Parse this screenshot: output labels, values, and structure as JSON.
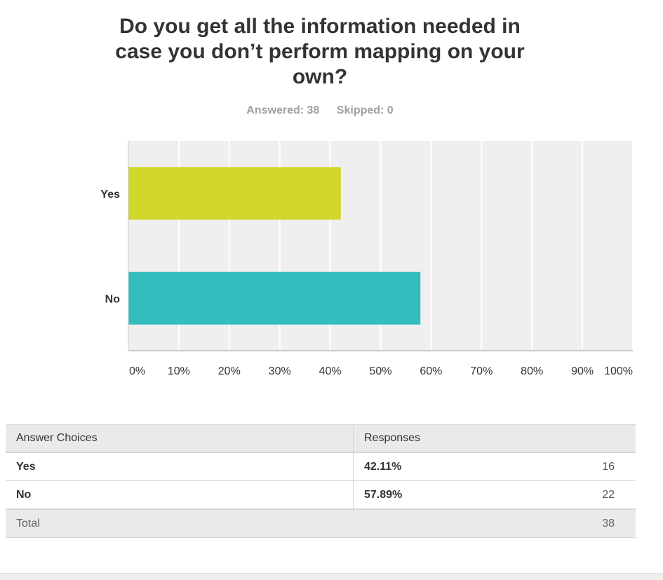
{
  "question": {
    "title": "Do you get all the information needed in case you don’t perform mapping on your own?"
  },
  "stats": {
    "answered": "Answered: 38",
    "skipped": "Skipped: 0"
  },
  "chart_data": {
    "type": "bar",
    "orientation": "horizontal",
    "categories": [
      "Yes",
      "No"
    ],
    "values": [
      42.11,
      57.89
    ],
    "colors": [
      "#d0d62a",
      "#33bdbf"
    ],
    "xlim": [
      0,
      100
    ],
    "xticks": [
      "0%",
      "10%",
      "20%",
      "30%",
      "40%",
      "50%",
      "60%",
      "70%",
      "80%",
      "90%",
      "100%"
    ],
    "grid": true,
    "background": "#efefef"
  },
  "table": {
    "headers": [
      "Answer Choices",
      "Responses",
      ""
    ],
    "rows": [
      {
        "choice": "Yes",
        "percent": "42.11%",
        "count": "16"
      },
      {
        "choice": "No",
        "percent": "57.89%",
        "count": "22"
      }
    ],
    "total": {
      "label": "Total",
      "count": "38"
    }
  }
}
